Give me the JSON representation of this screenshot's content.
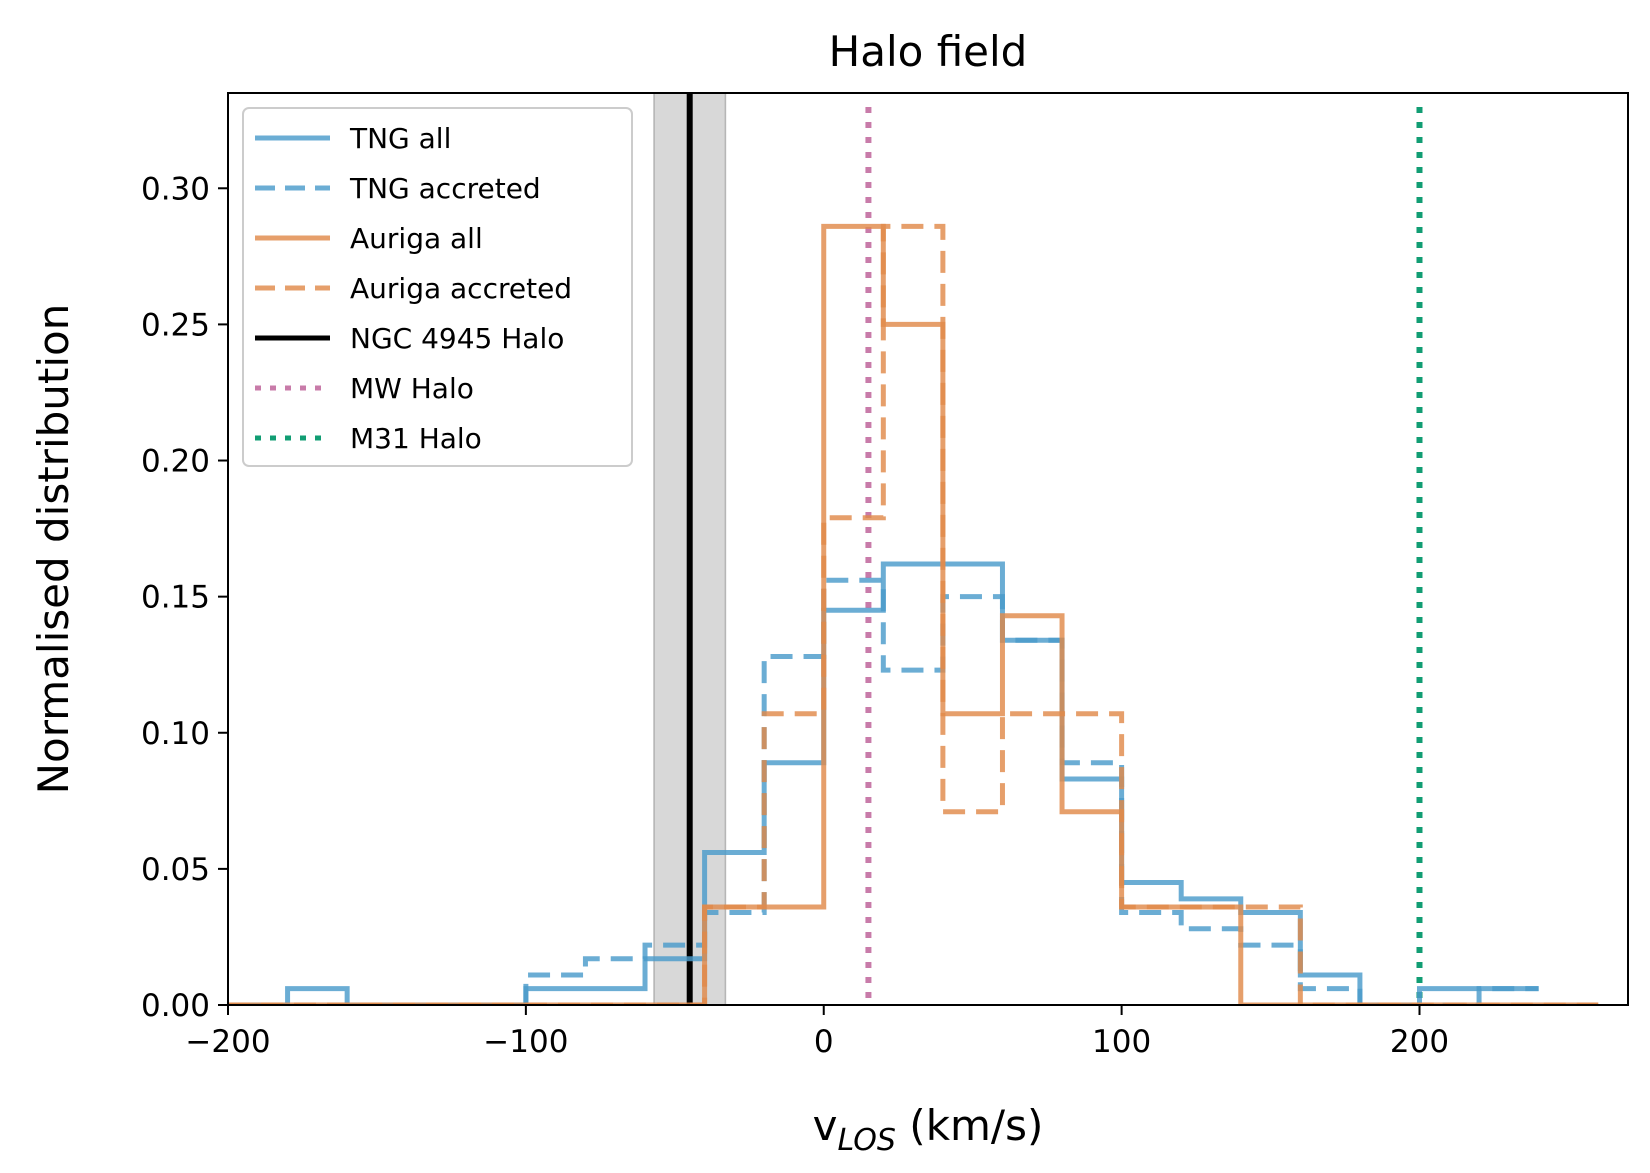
{
  "chart_data": {
    "type": "step-histogram",
    "title": "Halo field",
    "xlabel_main": "v",
    "xlabel_sub": "LOS",
    "xlabel_unit": " (km/s)",
    "ylabel": "Normalised distribution",
    "xlim": [
      -200,
      270
    ],
    "ylim": [
      0,
      0.335
    ],
    "xticks": [
      -200,
      -100,
      0,
      100,
      200
    ],
    "xtick_labels": [
      "−200",
      "−100",
      "0",
      "100",
      "200"
    ],
    "yticks": [
      0.0,
      0.05,
      0.1,
      0.15,
      0.2,
      0.25,
      0.3
    ],
    "ytick_labels": [
      "0.00",
      "0.05",
      "0.10",
      "0.15",
      "0.20",
      "0.25",
      "0.30"
    ],
    "legend_position": "top-left",
    "series": [
      {
        "name": "TNG all",
        "color": "#4a9bca",
        "style": "solid",
        "bins": [
          -200,
          -180,
          -160,
          -140,
          -120,
          -100,
          -80,
          -60,
          -40,
          -20,
          0,
          20,
          40,
          60,
          80,
          100,
          120,
          140,
          160,
          180,
          200,
          220,
          240
        ],
        "values": [
          0.0,
          0.006,
          0.0,
          0.0,
          0.0,
          0.006,
          0.006,
          0.017,
          0.056,
          0.089,
          0.145,
          0.162,
          0.162,
          0.134,
          0.083,
          0.045,
          0.039,
          0.034,
          0.011,
          0.0,
          0.006,
          0.006
        ]
      },
      {
        "name": "TNG accreted",
        "color": "#4a9bca",
        "style": "dashed",
        "bins": [
          -200,
          -180,
          -160,
          -140,
          -120,
          -100,
          -80,
          -60,
          -40,
          -20,
          0,
          20,
          40,
          60,
          80,
          100,
          120,
          140,
          160,
          180,
          200,
          220,
          240
        ],
        "values": [
          0.0,
          0.0,
          0.0,
          0.0,
          0.0,
          0.011,
          0.017,
          0.022,
          0.034,
          0.128,
          0.156,
          0.123,
          0.15,
          0.134,
          0.089,
          0.034,
          0.028,
          0.022,
          0.006,
          0.0,
          0.0,
          0.006
        ]
      },
      {
        "name": "Auriga all",
        "color": "#e08a4a",
        "style": "solid",
        "bins": [
          -200,
          -180,
          -160,
          -140,
          -120,
          -100,
          -80,
          -60,
          -40,
          -20,
          0,
          20,
          40,
          60,
          80,
          100,
          120,
          140,
          160,
          180,
          200,
          220,
          240,
          260
        ],
        "values": [
          0.0,
          0.0,
          0.0,
          0.0,
          0.0,
          0.0,
          0.0,
          0.0,
          0.036,
          0.036,
          0.286,
          0.25,
          0.107,
          0.143,
          0.071,
          0.036,
          0.036,
          0.0,
          0.0,
          0.0,
          0.0,
          0.0,
          0.0
        ]
      },
      {
        "name": "Auriga accreted",
        "color": "#e08a4a",
        "style": "dashed",
        "bins": [
          -200,
          -180,
          -160,
          -140,
          -120,
          -100,
          -80,
          -60,
          -40,
          -20,
          0,
          20,
          40,
          60,
          80,
          100,
          120,
          140,
          160,
          180,
          200,
          220,
          240,
          260
        ],
        "values": [
          0.0,
          0.0,
          0.0,
          0.0,
          0.0,
          0.0,
          0.0,
          0.0,
          0.036,
          0.107,
          0.179,
          0.286,
          0.071,
          0.107,
          0.107,
          0.036,
          0.036,
          0.036,
          0.0,
          0.0,
          0.0,
          0.0,
          0.0
        ]
      }
    ],
    "reference_lines": [
      {
        "name": "NGC 4945 Halo",
        "x": -45,
        "band": [
          -57,
          -33
        ],
        "color": "#000000",
        "style": "solid"
      },
      {
        "name": "MW Halo",
        "x": 15,
        "color": "#c87ba9",
        "style": "dotted"
      },
      {
        "name": "M31 Halo",
        "x": 200,
        "color": "#119d73",
        "style": "dotted"
      }
    ]
  }
}
